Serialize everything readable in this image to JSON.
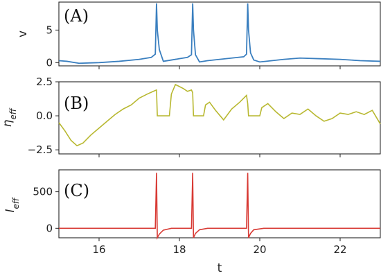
{
  "chart_data": [
    {
      "type": "line",
      "panel": "(A)",
      "ylabel": "v",
      "ylim": [
        -0.5,
        9.3
      ],
      "yticks": [
        0,
        5
      ],
      "xlim": [
        15,
        23
      ],
      "line_color": "#3a7fbf",
      "series": [
        {
          "x": [
            15,
            15.2,
            15.5,
            16,
            16.5,
            17,
            17.3,
            17.4,
            17.43,
            17.45,
            17.5,
            17.6,
            17.8,
            18,
            18.2,
            18.3,
            18.33,
            18.35,
            18.4,
            18.5,
            18.7,
            19,
            19.3,
            19.6,
            19.67,
            19.7,
            19.72,
            19.77,
            19.85,
            20,
            20.3,
            20.6,
            21,
            21.5,
            22,
            22.5,
            23
          ],
          "y": [
            0.3,
            0.2,
            -0.1,
            0,
            0.2,
            0.5,
            0.8,
            1.3,
            9.1,
            5,
            2,
            0.2,
            0.4,
            0.6,
            0.8,
            1.2,
            9.1,
            5,
            1.2,
            0.1,
            0.3,
            0.5,
            0.7,
            0.9,
            1.3,
            9.1,
            5,
            1.5,
            0.4,
            0.1,
            0.3,
            0.5,
            0.7,
            0.6,
            0.5,
            0.3,
            0.2
          ]
        }
      ]
    },
    {
      "type": "line",
      "panel": "(B)",
      "ylabel": "η_eff",
      "ylim": [
        -2.8,
        2.5
      ],
      "yticks": [
        -2.5,
        0,
        2.5
      ],
      "ytick_labels": [
        "−2.5",
        "0.0",
        "2.5"
      ],
      "xlim": [
        15,
        23
      ],
      "line_color": "#b8b830",
      "series": [
        {
          "x": [
            15,
            15.15,
            15.3,
            15.45,
            15.6,
            15.8,
            16,
            16.2,
            16.4,
            16.6,
            16.8,
            17,
            17.2,
            17.35,
            17.43,
            17.45,
            17.6,
            17.75,
            17.8,
            17.9,
            18.1,
            18.2,
            18.3,
            18.33,
            18.35,
            18.6,
            18.65,
            18.75,
            18.9,
            19.1,
            19.3,
            19.5,
            19.67,
            19.7,
            19.72,
            20,
            20.05,
            20.2,
            20.4,
            20.6,
            20.8,
            21,
            21.2,
            21.4,
            21.6,
            21.8,
            22,
            22.2,
            22.4,
            22.6,
            22.8,
            23
          ],
          "y": [
            -0.5,
            -1.1,
            -1.8,
            -2.2,
            -2.0,
            -1.4,
            -0.9,
            -0.4,
            0.1,
            0.5,
            0.8,
            1.3,
            1.6,
            1.8,
            1.9,
            0,
            0,
            0,
            1.6,
            2.3,
            2.0,
            1.8,
            1.9,
            1.7,
            0,
            0,
            0.8,
            1.0,
            0.4,
            -0.3,
            0.5,
            1.0,
            1.5,
            0.9,
            0,
            0,
            0.6,
            0.9,
            0.3,
            -0.2,
            0.2,
            0.1,
            0.5,
            0.0,
            -0.4,
            -0.2,
            0.2,
            0.1,
            0.3,
            0.1,
            0.4,
            -0.6
          ]
        }
      ]
    },
    {
      "type": "line",
      "panel": "(C)",
      "ylabel": "I_eff",
      "ylim": [
        -130,
        800
      ],
      "yticks": [
        0,
        500
      ],
      "xlim": [
        15,
        23
      ],
      "xticks": [
        16,
        18,
        20,
        22
      ],
      "xlabel": "t",
      "line_color": "#d83a34",
      "series": [
        {
          "x": [
            15,
            17.3,
            17.4,
            17.43,
            17.45,
            17.5,
            17.6,
            17.8,
            18.2,
            18.3,
            18.33,
            18.35,
            18.4,
            18.5,
            18.7,
            19.6,
            19.67,
            19.7,
            19.72,
            19.77,
            19.85,
            20.1,
            23
          ],
          "y": [
            0,
            0,
            0,
            760,
            -130,
            -80,
            -25,
            0,
            0,
            0,
            760,
            -130,
            -70,
            -20,
            0,
            0,
            0,
            760,
            -130,
            -70,
            -20,
            0,
            0
          ]
        }
      ]
    }
  ]
}
